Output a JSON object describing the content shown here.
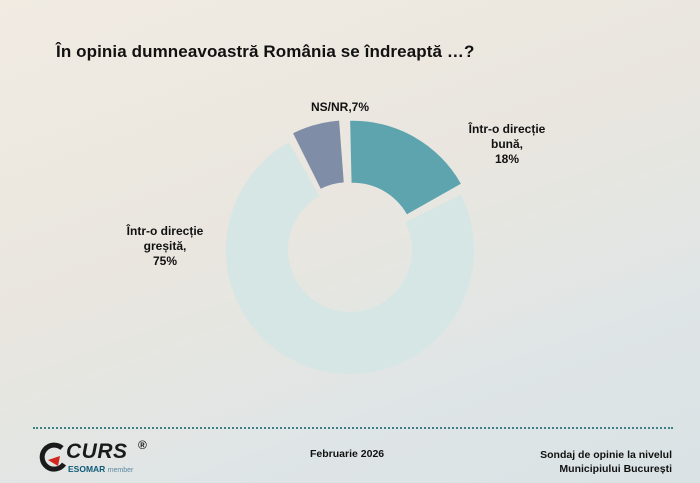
{
  "title": "În opinia dumneavoastră România se îndreaptă …?",
  "chart_data": {
    "type": "pie",
    "subtype": "donut",
    "categories": [
      "NS/NR",
      "Într-o direcție bună",
      "Într-o direcție greșită"
    ],
    "values": [
      7,
      18,
      75
    ],
    "unit": "%",
    "colors": [
      "#7f8ea6",
      "#5ea4af",
      "#d5e6e5"
    ],
    "labels": [
      {
        "lines": [
          "NS/NR,7%"
        ]
      },
      {
        "lines": [
          "Într-o direcție",
          "bună,",
          "18%"
        ]
      },
      {
        "lines": [
          "Într-o direcție",
          "greșită,",
          "75%"
        ]
      }
    ]
  },
  "footer": {
    "logo_text": "CURS",
    "logo_reg": "®",
    "logo_sub": "ESOMAR",
    "logo_sub_small": "member",
    "date": "Februarie 2026",
    "source_line1": "Sondaj de opinie la nivelul",
    "source_line2": "Municipiului București"
  }
}
